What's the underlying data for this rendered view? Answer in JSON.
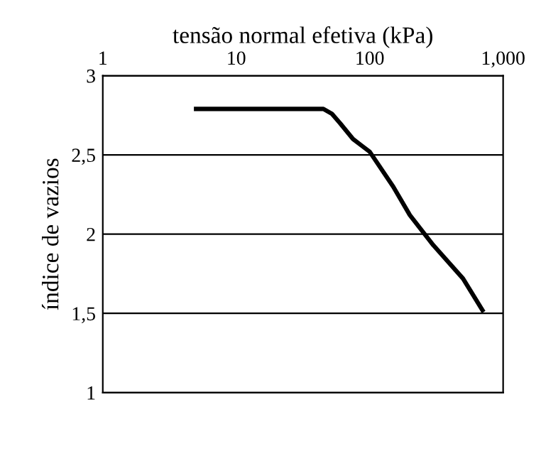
{
  "chart_data": {
    "type": "line",
    "xlabel": "tensão normal efetiva (kPa)",
    "ylabel": "índice de vazios",
    "x": [
      5,
      45,
      52,
      60,
      75,
      100,
      150,
      200,
      300,
      500,
      700
    ],
    "series": [
      {
        "color": "#000000",
        "values": [
          2.79,
          2.79,
          2.76,
          2.7,
          2.6,
          2.52,
          2.3,
          2.12,
          1.93,
          1.72,
          1.52
        ]
      }
    ],
    "log": "x",
    "xlim": [
      1,
      1000
    ],
    "xticks": [
      1,
      10,
      100,
      {
        "value": 1000,
        "label": "1,000"
      }
    ],
    "ylim": [
      1,
      3
    ],
    "yticks": [
      1,
      {
        "value": 1.5,
        "label": "1,5"
      },
      2,
      {
        "value": 2.5,
        "label": "2,5"
      },
      3
    ],
    "grid": "y",
    "legend": false,
    "marker": "none",
    "line_style": "solid"
  }
}
